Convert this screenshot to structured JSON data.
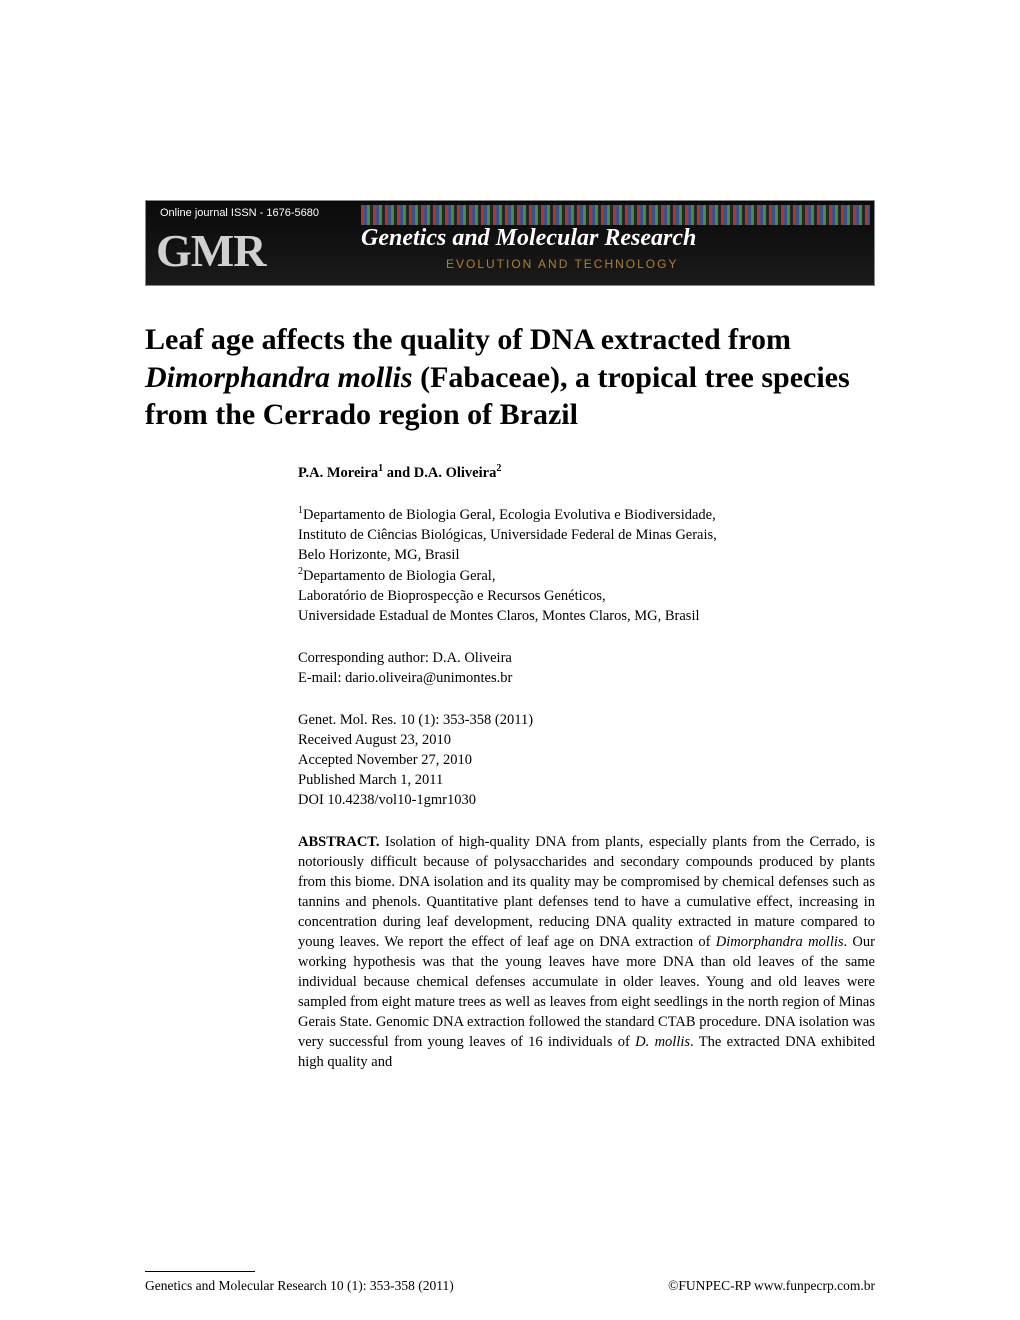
{
  "banner": {
    "top_text": "Online journal    ISSN - 1676-5680",
    "gmr": "GMR",
    "title": "Genetics and Molecular Research",
    "sub": "EVOLUTION AND TECHNOLOGY"
  },
  "title": {
    "part1": "Leaf age affects the quality of DNA extracted from ",
    "italic1": "Dimorphandra mollis",
    "part2": " (Fabaceae), a tropical tree species from the Cerrado region of Brazil"
  },
  "authors": {
    "a1": "P.A. Moreira",
    "sup1": "1",
    "and": " and ",
    "a2": "D.A. Oliveira",
    "sup2": "2"
  },
  "affil": {
    "sup1": "1",
    "line1a": "Departamento de Biologia Geral, Ecologia Evolutiva e Biodiversidade,",
    "line1b": "Instituto de Ciências Biológicas, Universidade Federal de Minas Gerais,",
    "line1c": "Belo Horizonte, MG, Brasil",
    "sup2": "2",
    "line2a": "Departamento de Biologia Geral,",
    "line2b": "Laboratório de Bioprospecção e Recursos Genéticos,",
    "line2c": "Universidade Estadual de Montes Claros, Montes Claros, MG, Brasil"
  },
  "corr": {
    "line1": "Corresponding author: D.A. Oliveira",
    "line2": "E-mail: dario.oliveira@unimontes.br"
  },
  "cite": {
    "line1": "Genet. Mol. Res. 10 (1): 353-358 (2011)",
    "line2": "Received August 23, 2010",
    "line3": "Accepted November 27, 2010",
    "line4": "Published March 1, 2011",
    "line5": "DOI 10.4238/vol10-1gmr1030"
  },
  "abstract": {
    "label": "ABSTRACT.",
    "p1": " Isolation of high-quality DNA from plants, especially plants from the Cerrado, is notoriously difficult because of polysaccharides and secondary compounds produced by plants from this biome. DNA isolation and its quality may be compromised by chemical defenses such as tannins and phenols. Quantitative plant defenses tend to have a cumulative effect, increasing in concentration during leaf development, reducing DNA quality extracted in mature compared to young leaves. We report the effect of leaf age on DNA extraction of ",
    "italic1": "Dimorphandra mollis",
    "p2": ". Our working hypothesis was that the young leaves have more DNA than old leaves of the same individual because chemical defenses accumulate in older leaves. Young and old leaves were sampled from eight mature trees as well as leaves from eight seedlings in the north region of Minas Gerais State. Genomic DNA extraction followed the standard CTAB procedure. DNA isolation was very successful from young leaves of 16 individuals of ",
    "italic2": "D. mollis",
    "p3": ". The extracted DNA exhibited high quality and"
  },
  "footer": {
    "left": "Genetics and Molecular Research 10 (1): 353-358 (2011)",
    "right": "©FUNPEC-RP www.funpecrp.com.br"
  }
}
